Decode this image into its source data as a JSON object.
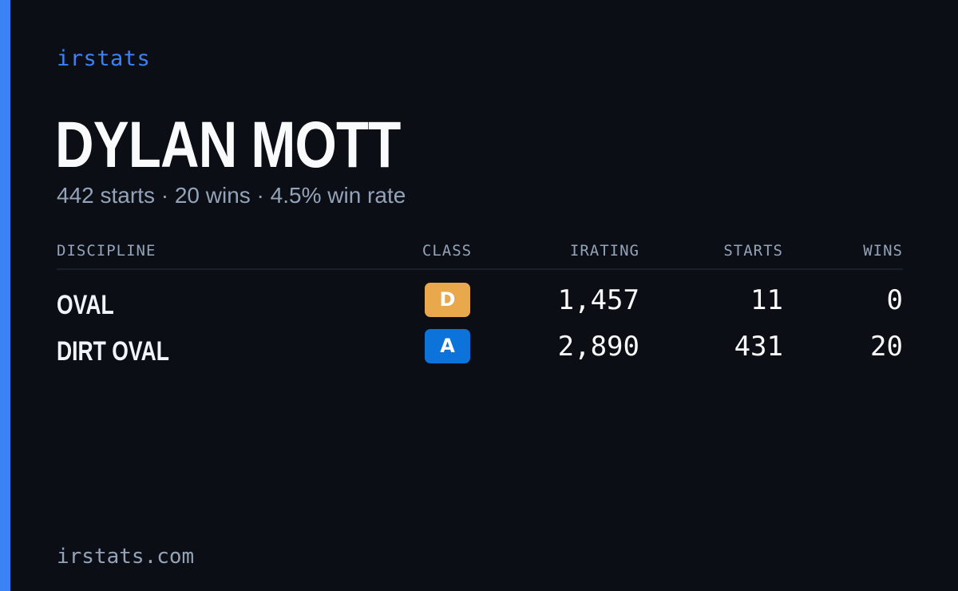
{
  "brand": "irstats",
  "driver": {
    "name": "DYLAN MOTT",
    "summary": "442 starts · 20 wins · 4.5% win rate"
  },
  "table": {
    "headers": {
      "discipline": "DISCIPLINE",
      "class": "CLASS",
      "irating": "IRATING",
      "starts": "STARTS",
      "wins": "WINS"
    },
    "rows": [
      {
        "discipline": "OVAL",
        "class": "D",
        "class_color": "#e9a84c",
        "irating": "1,457",
        "starts": "11",
        "wins": "0"
      },
      {
        "discipline": "DIRT OVAL",
        "class": "A",
        "class_color": "#0b73d9",
        "irating": "2,890",
        "starts": "431",
        "wins": "20"
      }
    ]
  },
  "footer": {
    "url": "irstats.com"
  },
  "colors": {
    "background": "#0b0e15",
    "accent": "#3b82f6",
    "muted_text": "#94a3b8",
    "primary_text": "#f8fafc"
  }
}
